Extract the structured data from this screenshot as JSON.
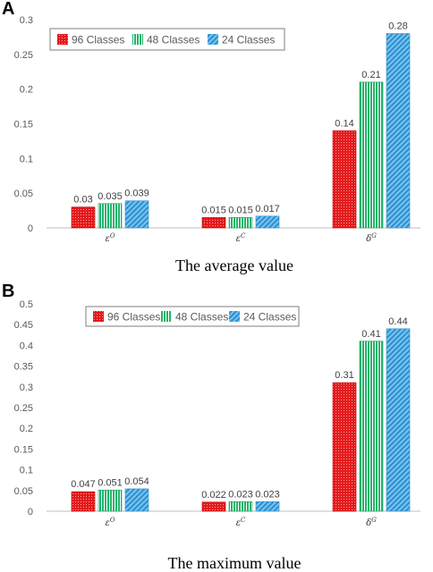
{
  "colors": {
    "red": "#e31a1c",
    "green": "#1fb36b",
    "blue": "#3a9fd8",
    "axis": "#bfbfbf",
    "grid": "#e3e3e3"
  },
  "chart_data": [
    {
      "panel": "A",
      "type": "bar",
      "caption": "The average value",
      "categories": [
        "ε^O",
        "ε^C",
        "δ^G"
      ],
      "series": [
        {
          "name": "96 Classes",
          "values": [
            0.03,
            0.015,
            0.14
          ]
        },
        {
          "name": "48 Classes",
          "values": [
            0.035,
            0.015,
            0.21
          ]
        },
        {
          "name": "24 Classes",
          "values": [
            0.039,
            0.017,
            0.28
          ]
        }
      ],
      "data_labels": [
        [
          "0.03",
          "0.015",
          "0.14"
        ],
        [
          "0.035",
          "0.015",
          "0.21"
        ],
        [
          "0.039",
          "0.017",
          "0.28"
        ]
      ],
      "ylim": [
        0,
        0.3
      ],
      "yticks": [
        "0",
        "0.05",
        "0.1",
        "0.15",
        "0.2",
        "0.25",
        "0.3"
      ],
      "legend": "top-left",
      "grid": false
    },
    {
      "panel": "B",
      "type": "bar",
      "caption": "The maximum value",
      "categories": [
        "ε^O",
        "ε^C",
        "δ^G"
      ],
      "series": [
        {
          "name": "96 Classes",
          "values": [
            0.047,
            0.022,
            0.31
          ]
        },
        {
          "name": "48 Classes",
          "values": [
            0.051,
            0.023,
            0.41
          ]
        },
        {
          "name": "24 Classes",
          "values": [
            0.054,
            0.023,
            0.44
          ]
        }
      ],
      "data_labels": [
        [
          "0.047",
          "0.022",
          "0.31"
        ],
        [
          "0.051",
          "0.023",
          "0.41"
        ],
        [
          "0.054",
          "0.023",
          "0.44"
        ]
      ],
      "ylim": [
        0,
        0.5
      ],
      "yticks": [
        "0",
        "0.05",
        "0.1",
        "0.15",
        "0.2",
        "0.25",
        "0.3",
        "0.35",
        "0.4",
        "0.45",
        "0.5"
      ],
      "legend": "top-left",
      "grid": false
    }
  ]
}
